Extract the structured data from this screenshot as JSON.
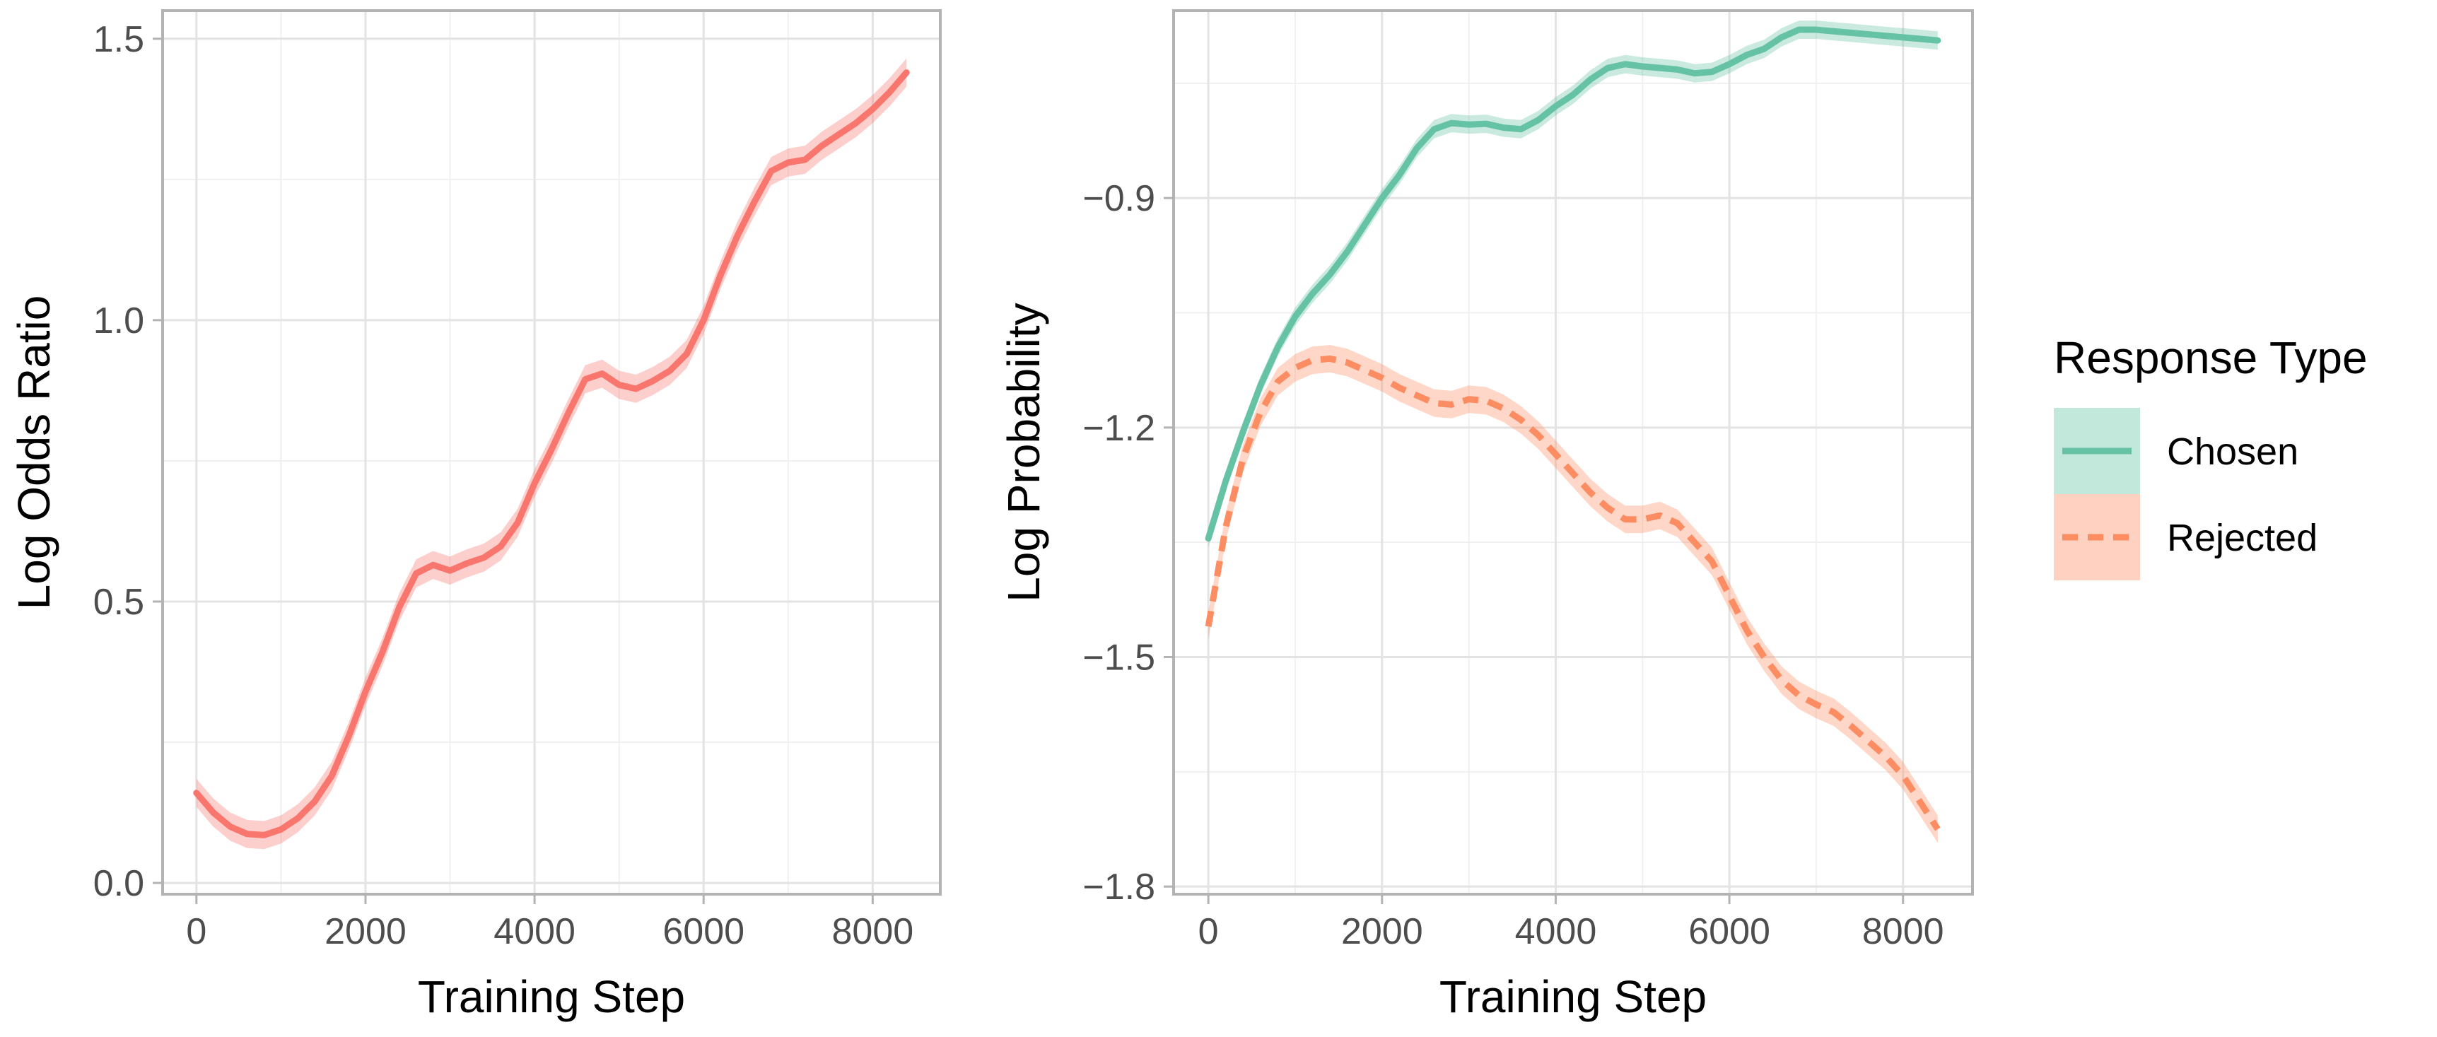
{
  "colors": {
    "odds": "#F8766D",
    "chosen": "#66C2A5",
    "rejected": "#FC8D62"
  },
  "legend": {
    "title": "Response Type",
    "items": [
      {
        "key": "chosen",
        "label": "Chosen",
        "style": "solid"
      },
      {
        "key": "rejected",
        "label": "Rejected",
        "style": "dashed"
      }
    ]
  },
  "chart_data": [
    {
      "type": "line",
      "xlabel": "Training Step",
      "ylabel": "Log Odds Ratio",
      "xlim": [
        -400,
        8800
      ],
      "ylim": [
        -0.02,
        1.55
      ],
      "xticks": [
        0,
        2000,
        4000,
        6000,
        8000
      ],
      "yticks": [
        0.0,
        0.5,
        1.0,
        1.5
      ],
      "ytick_labels": [
        "0.0",
        "0.5",
        "1.0",
        "1.5"
      ],
      "grid": true,
      "series": [
        {
          "key": "odds",
          "band": 0.025,
          "x": [
            0,
            200,
            400,
            600,
            800,
            1000,
            1200,
            1400,
            1600,
            1800,
            2000,
            2200,
            2400,
            2600,
            2800,
            3000,
            3200,
            3400,
            3600,
            3800,
            4000,
            4200,
            4400,
            4600,
            4800,
            5000,
            5200,
            5400,
            5600,
            5800,
            6000,
            6200,
            6400,
            6600,
            6800,
            7000,
            7200,
            7400,
            7600,
            7800,
            8000,
            8200,
            8400
          ],
          "y": [
            0.16,
            0.125,
            0.1,
            0.087,
            0.085,
            0.095,
            0.115,
            0.145,
            0.19,
            0.26,
            0.34,
            0.41,
            0.49,
            0.55,
            0.565,
            0.555,
            0.568,
            0.578,
            0.598,
            0.64,
            0.71,
            0.77,
            0.835,
            0.895,
            0.905,
            0.885,
            0.878,
            0.892,
            0.91,
            0.94,
            1.0,
            1.08,
            1.15,
            1.21,
            1.265,
            1.28,
            1.285,
            1.31,
            1.33,
            1.35,
            1.375,
            1.405,
            1.44
          ]
        }
      ]
    },
    {
      "type": "line",
      "xlabel": "Training Step",
      "ylabel": "Log Probability",
      "xlim": [
        -400,
        8800
      ],
      "ylim": [
        -1.81,
        -0.655
      ],
      "xticks": [
        0,
        2000,
        4000,
        6000,
        8000
      ],
      "yticks": [
        -1.8,
        -1.5,
        -1.2,
        -0.9
      ],
      "ytick_labels": [
        "−1.8",
        "−1.5",
        "−1.2",
        "−0.9"
      ],
      "grid": true,
      "series": [
        {
          "key": "chosen",
          "band": 0.012,
          "x": [
            0,
            200,
            400,
            600,
            800,
            1000,
            1200,
            1400,
            1600,
            1800,
            2000,
            2200,
            2400,
            2600,
            2800,
            3000,
            3200,
            3400,
            3600,
            3800,
            4000,
            4200,
            4400,
            4600,
            4800,
            5000,
            5200,
            5400,
            5600,
            5800,
            6000,
            6200,
            6400,
            6600,
            6800,
            7000,
            7200,
            7400,
            7600,
            7800,
            8000,
            8200,
            8400
          ],
          "y": [
            -1.345,
            -1.27,
            -1.205,
            -1.145,
            -1.095,
            -1.055,
            -1.025,
            -1.0,
            -0.97,
            -0.935,
            -0.9,
            -0.87,
            -0.835,
            -0.81,
            -0.802,
            -0.804,
            -0.803,
            -0.808,
            -0.81,
            -0.798,
            -0.78,
            -0.765,
            -0.745,
            -0.73,
            -0.725,
            -0.728,
            -0.73,
            -0.732,
            -0.737,
            -0.735,
            -0.725,
            -0.713,
            -0.705,
            -0.69,
            -0.68,
            -0.68,
            -0.682,
            -0.684,
            -0.686,
            -0.688,
            -0.69,
            -0.692,
            -0.694
          ]
        },
        {
          "key": "rejected",
          "band": 0.018,
          "x": [
            0,
            200,
            400,
            600,
            800,
            1000,
            1200,
            1400,
            1600,
            1800,
            2000,
            2200,
            2400,
            2600,
            2800,
            3000,
            3200,
            3400,
            3600,
            3800,
            4000,
            4200,
            4400,
            4600,
            4800,
            5000,
            5200,
            5400,
            5600,
            5800,
            6000,
            6200,
            6400,
            6600,
            6800,
            7000,
            7200,
            7400,
            7600,
            7800,
            8000,
            8200,
            8400
          ],
          "y": [
            -1.46,
            -1.33,
            -1.24,
            -1.18,
            -1.14,
            -1.122,
            -1.112,
            -1.11,
            -1.115,
            -1.125,
            -1.135,
            -1.148,
            -1.158,
            -1.168,
            -1.17,
            -1.163,
            -1.165,
            -1.175,
            -1.19,
            -1.21,
            -1.235,
            -1.26,
            -1.285,
            -1.305,
            -1.32,
            -1.32,
            -1.315,
            -1.325,
            -1.35,
            -1.375,
            -1.42,
            -1.465,
            -1.5,
            -1.53,
            -1.55,
            -1.562,
            -1.572,
            -1.59,
            -1.61,
            -1.63,
            -1.655,
            -1.69,
            -1.725
          ]
        }
      ]
    }
  ]
}
